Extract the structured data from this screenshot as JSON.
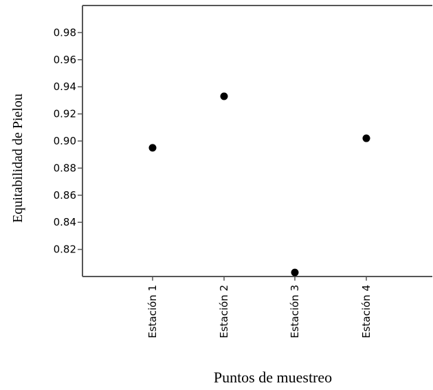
{
  "chart_data": {
    "type": "scatter",
    "categories": [
      "Estación 1",
      "Estación 2",
      "Estación 3",
      "Estación 4"
    ],
    "values": [
      0.895,
      0.933,
      0.803,
      0.902
    ],
    "xlabel": "Puntos de muestreo",
    "ylabel": "Equitabilidad de Pielou",
    "ylim": [
      0.8,
      1.0
    ],
    "yticks": [
      "0.82",
      "0.84",
      "0.86",
      "0.88",
      "0.90",
      "0.92",
      "0.94",
      "0.96",
      "0.98"
    ],
    "grid": false,
    "colors": {
      "marker": "#000000",
      "axis": "#555555"
    }
  }
}
